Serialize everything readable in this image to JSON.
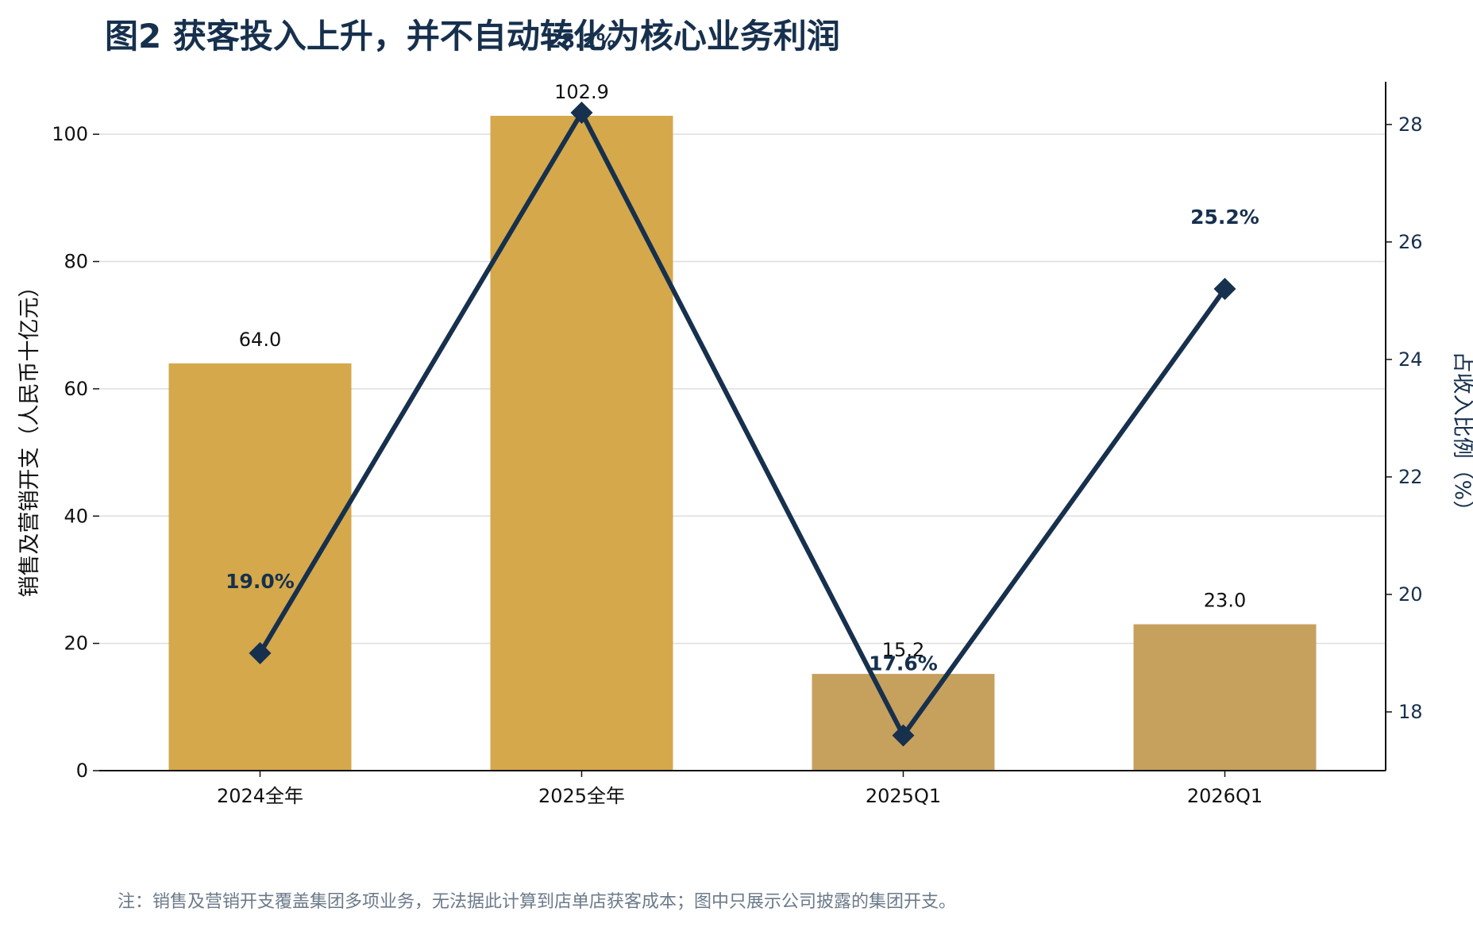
{
  "title": "图2  获客投入上升，并不自动转化为核心业务利润",
  "footnote": "注：销售及营销开支覆盖集团多项业务，无法据此计算到店单店获客成本；图中只展示公司披露的集团开支。",
  "colors": {
    "bar_full_year": "#d4a84b",
    "bar_quarter": "#c6a05d",
    "line": "#16304d",
    "grid": "#dedede",
    "axis": "#111111"
  },
  "chart_data": {
    "type": "bar",
    "categories": [
      "2024全年",
      "2025全年",
      "2025Q1",
      "2026Q1"
    ],
    "ylabel": "销售及营销开支（人民币十亿元）",
    "ylabel_right": "占收入比例（%）",
    "ylim": [
      0,
      108
    ],
    "y_ticks": [
      0,
      20,
      40,
      60,
      80,
      100
    ],
    "ylim_right": [
      17,
      28.7
    ],
    "y_ticks_right": [
      18,
      20,
      22,
      24,
      26,
      28
    ],
    "grid": true,
    "series": [
      {
        "kind": "bar",
        "values": [
          64.0,
          102.9,
          15.2,
          23.0
        ],
        "labels": [
          "64.0",
          "102.9",
          "15.2",
          "23.0"
        ]
      },
      {
        "kind": "line",
        "axis": "right",
        "marker": "diamond",
        "values": [
          19.0,
          28.2,
          17.6,
          25.2
        ],
        "labels": [
          "19.0%",
          "28.2%",
          "17.6%",
          "25.2%"
        ]
      }
    ]
  }
}
